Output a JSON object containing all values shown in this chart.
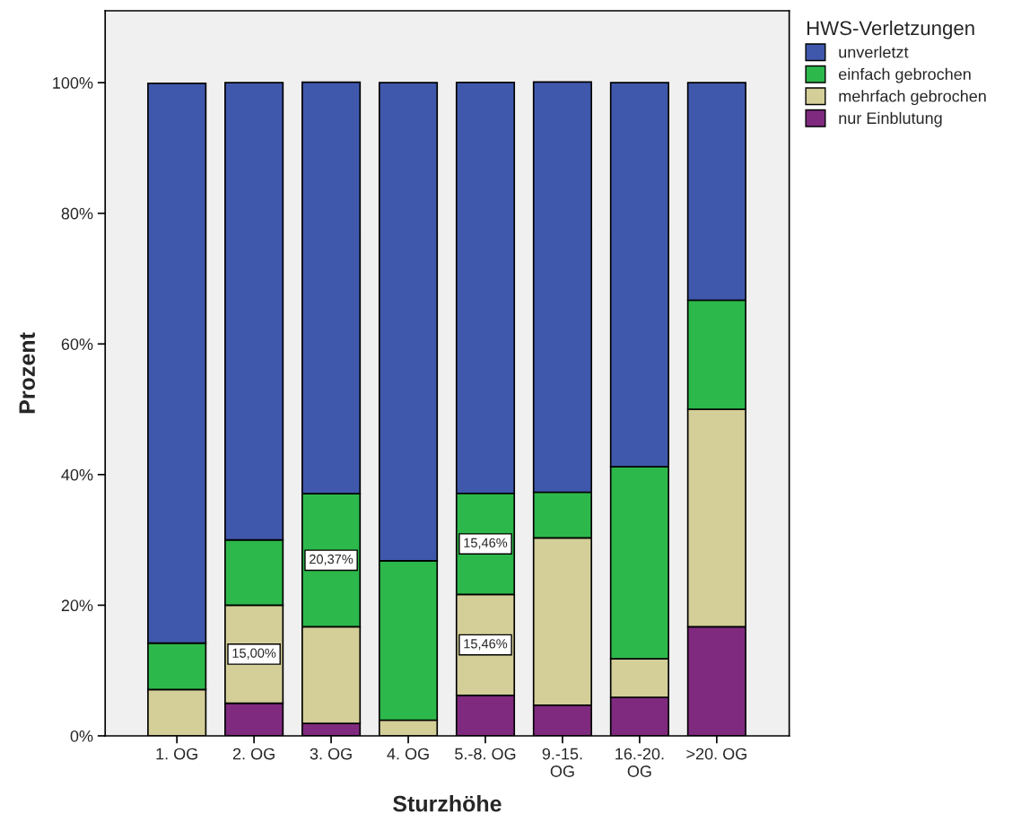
{
  "chart_data": {
    "type": "bar",
    "stacked": true,
    "xlabel": "Sturzhöhe",
    "ylabel": "Prozent",
    "legend_title": "HWS-Verletzungen",
    "legend": "top right",
    "grid": false,
    "categories": [
      "1. OG",
      "2. OG",
      "3. OG",
      "4. OG",
      "5.-8. OG",
      "9.-15.\nOG",
      "16.-20.\nOG",
      ">20. OG"
    ],
    "ylim": [
      0,
      111
    ],
    "yticks": [
      {
        "value": 0,
        "label": "0%"
      },
      {
        "value": 20,
        "label": "20%"
      },
      {
        "value": 40,
        "label": "40%"
      },
      {
        "value": 60,
        "label": "60%"
      },
      {
        "value": 80,
        "label": "80%"
      },
      {
        "value": 100,
        "label": "100%"
      }
    ],
    "series": [
      {
        "name": "nur Einblutung",
        "color": "#7f2a7f",
        "values": [
          0,
          5,
          1.9,
          0,
          6.2,
          4.7,
          5.9,
          16.7
        ],
        "value_labels": [
          null,
          null,
          null,
          null,
          null,
          null,
          null,
          null
        ]
      },
      {
        "name": "mehrfach gebrochen",
        "color": "#d4ce98",
        "values": [
          7.1,
          15.0,
          14.8,
          2.4,
          15.46,
          25.6,
          5.9,
          33.3
        ],
        "value_labels": [
          null,
          "15,00%",
          null,
          null,
          "15,46%",
          null,
          null,
          null
        ]
      },
      {
        "name": "einfach gebrochen",
        "color": "#2db84b",
        "values": [
          7.1,
          10,
          20.37,
          24.4,
          15.46,
          7.0,
          29.4,
          16.7
        ],
        "value_labels": [
          null,
          null,
          "20,37%",
          null,
          "15,46%",
          null,
          null,
          null
        ]
      },
      {
        "name": "unverletzt",
        "color": "#3f58ac",
        "values": [
          85.7,
          70,
          63.0,
          73.2,
          62.9,
          62.8,
          58.8,
          33.3
        ],
        "value_labels": [
          null,
          null,
          null,
          null,
          null,
          null,
          null,
          null
        ]
      }
    ]
  }
}
